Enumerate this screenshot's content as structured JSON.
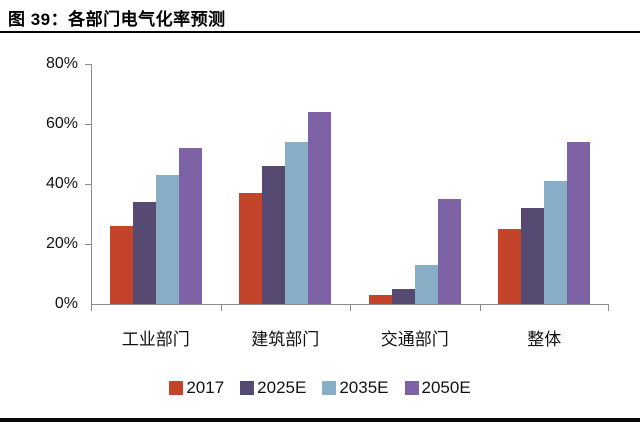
{
  "title": "图 39：各部门电气化率预测",
  "chart_data": {
    "type": "bar",
    "title": "各部门电气化率预测",
    "categories": [
      "工业部门",
      "建筑部门",
      "交通部门",
      "整体"
    ],
    "series": [
      {
        "name": "2017",
        "color": "#C3432B",
        "values": [
          26,
          37,
          3,
          25
        ]
      },
      {
        "name": "2025E",
        "color": "#564A72",
        "values": [
          34,
          46,
          5,
          32
        ]
      },
      {
        "name": "2035E",
        "color": "#87AEC6",
        "values": [
          43,
          54,
          13,
          41
        ]
      },
      {
        "name": "2050E",
        "color": "#7D63A6",
        "values": [
          52,
          64,
          35,
          54
        ]
      }
    ],
    "xlabel": "",
    "ylabel": "",
    "ylim": [
      0,
      80
    ],
    "ytick_step": 20,
    "yticklabels": [
      "0%",
      "20%",
      "40%",
      "60%",
      "80%"
    ],
    "legend_position": "bottom",
    "grid": false,
    "axis_color": "#8c8c8c"
  }
}
